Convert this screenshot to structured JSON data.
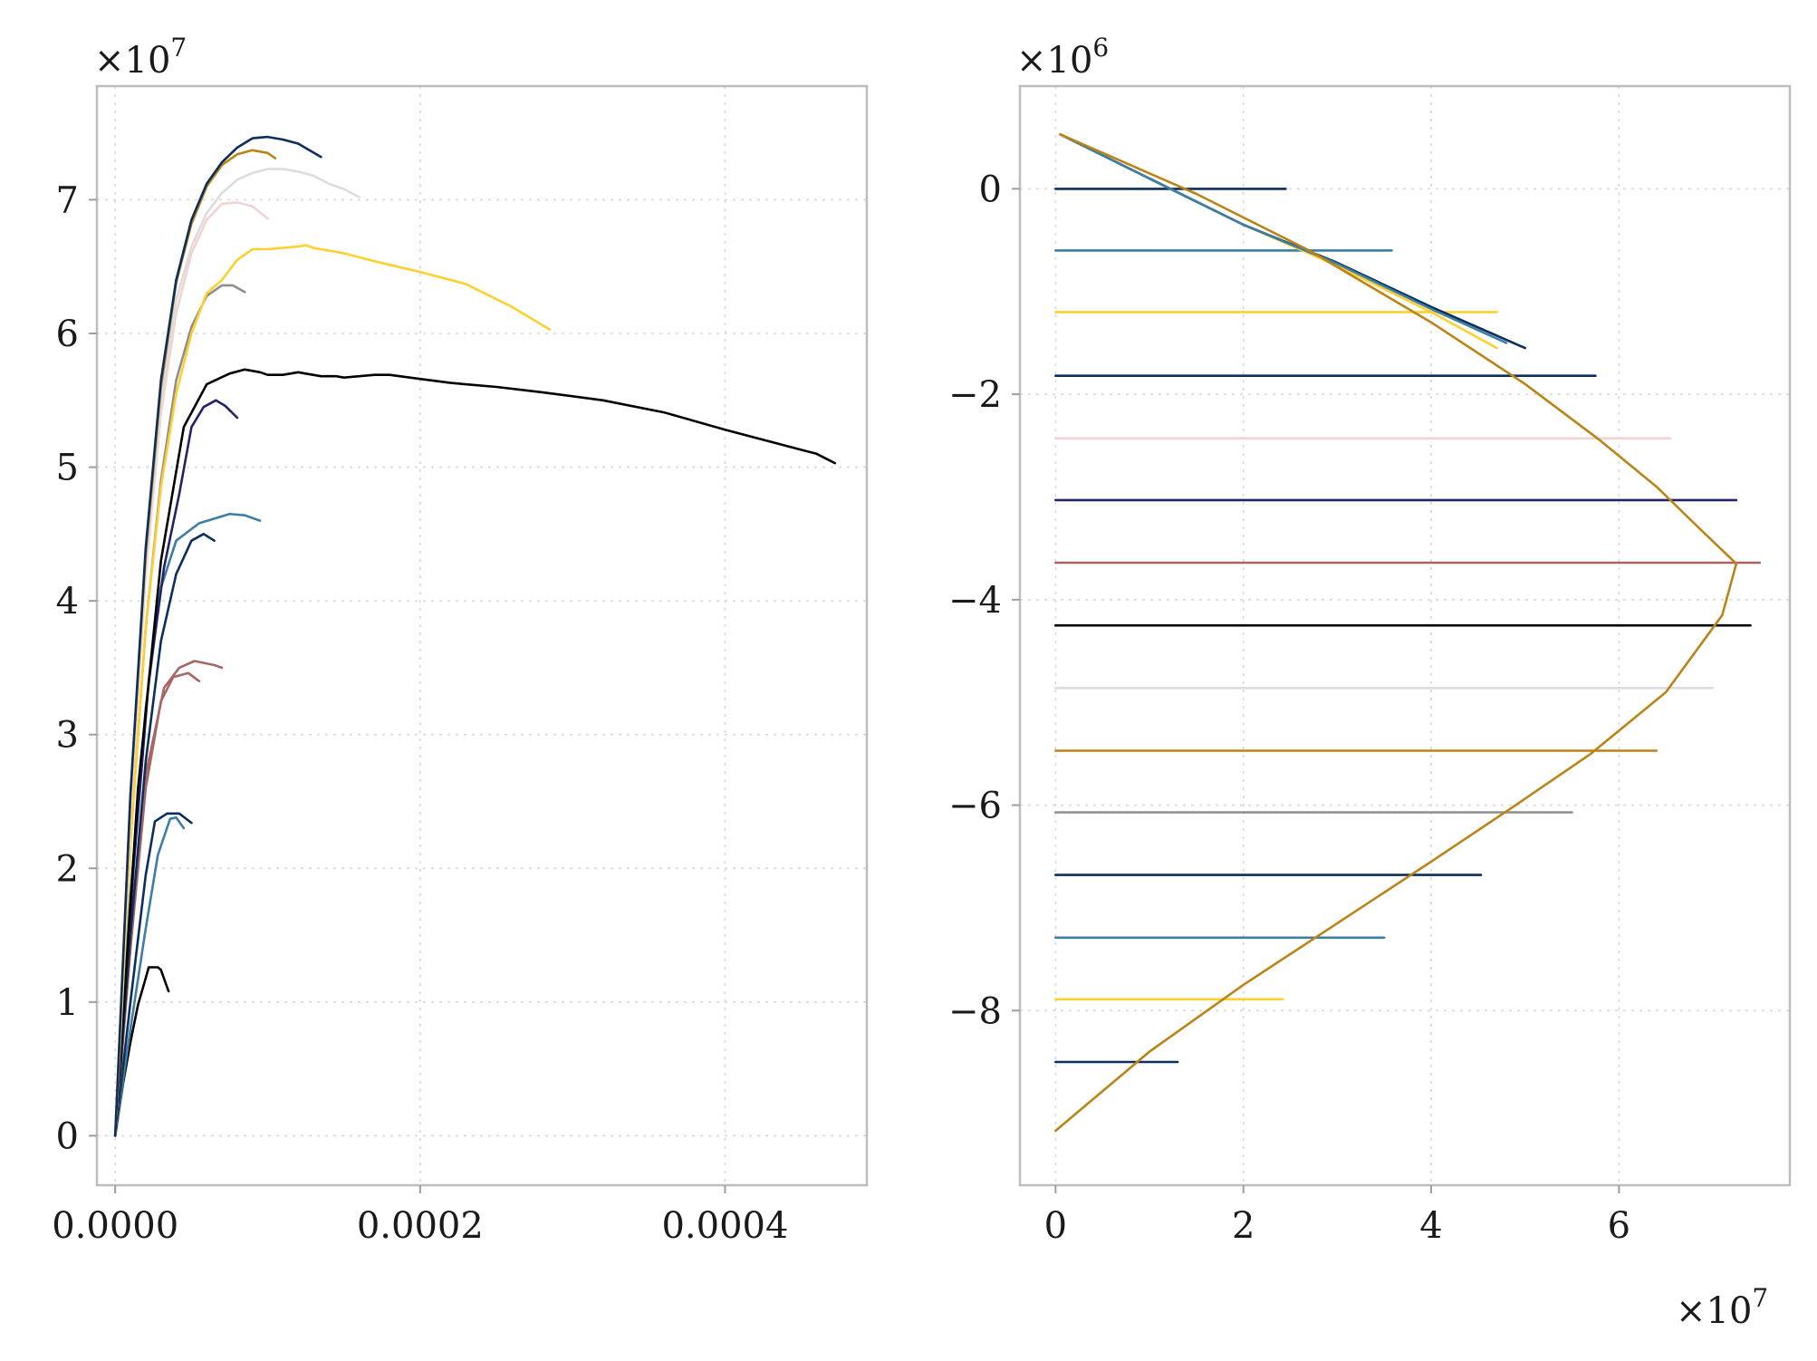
{
  "chart_data": [
    {
      "type": "line",
      "xlim": [
        -1.2e-05,
        0.000493
      ],
      "ylim": [
        -3700000,
        78500000
      ],
      "x_ticks": [
        0,
        0.0002,
        0.0004
      ],
      "x_tick_labels": [
        "0.0000",
        "0.0002",
        "0.0004"
      ],
      "y_ticks": [
        0,
        10000000,
        20000000,
        30000000,
        40000000,
        50000000,
        60000000,
        70000000
      ],
      "y_tick_labels": [
        "0",
        "1",
        "2",
        "3",
        "4",
        "5",
        "6",
        "7"
      ],
      "y_offset_label": "×10^7",
      "grid": true,
      "series": [
        {
          "color": "#000000",
          "x": [
            0,
            5e-06,
            1e-05,
            1.5e-05,
            2e-05,
            2.2e-05,
            2.8e-05,
            3e-05,
            3.5e-05
          ],
          "y": [
            0,
            3800000,
            7000000,
            9800000,
            11800000,
            12600000,
            12600000,
            12400000,
            10800000
          ]
        },
        {
          "color": "#3c7ea4",
          "x": [
            0,
            1e-05,
            2e-05,
            2.8e-05,
            3.6e-05,
            4e-05,
            4.5e-05
          ],
          "y": [
            0,
            8000000,
            15500000,
            21000000,
            23700000,
            23800000,
            23000000
          ]
        },
        {
          "color": "#0b2e5c",
          "x": [
            0,
            1e-05,
            2e-05,
            2.6e-05,
            3.4e-05,
            4.2e-05,
            5e-05
          ],
          "y": [
            0,
            10000000,
            19500000,
            23500000,
            24100000,
            24100000,
            23400000
          ]
        },
        {
          "color": "#a86565",
          "x": [
            0,
            1e-05,
            2e-05,
            3e-05,
            3.8e-05,
            4.8e-05,
            5.5e-05
          ],
          "y": [
            0,
            14000000,
            26000000,
            32500000,
            34300000,
            34600000,
            34000000
          ]
        },
        {
          "color": "#a86565",
          "x": [
            0,
            1e-05,
            2e-05,
            3.2e-05,
            4.2e-05,
            5.2e-05,
            6.5e-05,
            7e-05
          ],
          "y": [
            0,
            14000000,
            27000000,
            33500000,
            35000000,
            35500000,
            35200000,
            35000000
          ]
        },
        {
          "color": "#0b2e5c",
          "x": [
            0,
            1e-05,
            2e-05,
            3e-05,
            4e-05,
            5e-05,
            5.8e-05,
            6.5e-05
          ],
          "y": [
            0,
            15000000,
            28000000,
            37000000,
            42000000,
            44500000,
            45000000,
            44500000
          ]
        },
        {
          "color": "#3c7ea4",
          "x": [
            0,
            1e-05,
            2e-05,
            3e-05,
            4e-05,
            5.5e-05,
            7.5e-05,
            8.5e-05,
            9.5e-05
          ],
          "y": [
            0,
            18000000,
            32000000,
            41000000,
            44500000,
            45800000,
            46500000,
            46400000,
            46000000
          ]
        },
        {
          "color": "#222266",
          "x": [
            0,
            1.2e-05,
            2.2e-05,
            3.2e-05,
            4.2e-05,
            5e-05,
            5.8e-05,
            6.6e-05,
            7.2e-05,
            8e-05
          ],
          "y": [
            0,
            20000000,
            34000000,
            42500000,
            48000000,
            53000000,
            54500000,
            55000000,
            54600000,
            53700000
          ]
        },
        {
          "color": "#000000",
          "x": [
            0,
            1.5e-05,
            3e-05,
            4.5e-05,
            6e-05,
            7.5e-05,
            8.5e-05,
            9e-05,
            9.5e-05,
            0.0001,
            0.00011,
            0.00012,
            0.000125,
            0.000135,
            0.000145,
            0.00015,
            0.00016,
            0.00017,
            0.00018,
            0.0002,
            0.00022,
            0.00025,
            0.00028,
            0.00032,
            0.00036,
            0.0004,
            0.00044,
            0.00046,
            0.000472
          ],
          "y": [
            0,
            26000000,
            43000000,
            53000000,
            56200000,
            57000000,
            57300000,
            57200000,
            57100000,
            56900000,
            56900000,
            57100000,
            57000000,
            56800000,
            56800000,
            56700000,
            56800000,
            56900000,
            56900000,
            56600000,
            56300000,
            56000000,
            55600000,
            55000000,
            54100000,
            52800000,
            51600000,
            51000000,
            50300000
          ]
        },
        {
          "color": "#8e8e8e",
          "x": [
            0,
            1e-05,
            2e-05,
            3e-05,
            4e-05,
            5e-05,
            6e-05,
            7e-05,
            7.7e-05,
            8.5e-05
          ],
          "y": [
            0,
            22000000,
            38000000,
            49000000,
            56500000,
            60500000,
            62800000,
            63600000,
            63600000,
            63100000
          ]
        },
        {
          "color": "#fed02f",
          "x": [
            0,
            1e-05,
            2e-05,
            3e-05,
            4e-05,
            5e-05,
            6e-05,
            7e-05,
            8e-05,
            9e-05,
            0.0001,
            0.00011,
            0.00012,
            0.000125,
            0.00013,
            0.00015,
            0.00017,
            0.0002,
            0.00023,
            0.00026,
            0.000285
          ],
          "y": [
            0,
            22000000,
            38000000,
            48500000,
            55500000,
            60000000,
            63000000,
            64000000,
            65500000,
            66300000,
            66300000,
            66400000,
            66500000,
            66600000,
            66400000,
            66000000,
            65400000,
            64600000,
            63700000,
            62000000,
            60300000
          ]
        },
        {
          "color": "#f1d3d3",
          "x": [
            0,
            1e-05,
            2e-05,
            3e-05,
            4e-05,
            5e-05,
            6e-05,
            7e-05,
            8e-05,
            9e-05,
            0.0001
          ],
          "y": [
            0,
            24000000,
            42000000,
            54000000,
            61500000,
            66000000,
            68500000,
            69700000,
            69800000,
            69500000,
            68600000
          ]
        },
        {
          "color": "#dcdcdc",
          "x": [
            0,
            1e-05,
            2e-05,
            3e-05,
            4e-05,
            5e-05,
            6e-05,
            7e-05,
            8e-05,
            9e-05,
            0.0001,
            0.00011,
            0.00012,
            0.00013,
            0.00014,
            0.00015,
            0.00016
          ],
          "y": [
            0,
            25000000,
            43000000,
            55000000,
            62500000,
            66500000,
            69000000,
            70500000,
            71500000,
            72000000,
            72300000,
            72300000,
            72100000,
            71800000,
            71200000,
            70800000,
            70200000
          ]
        },
        {
          "color": "#bb8416",
          "x": [
            0,
            1e-05,
            2e-05,
            3e-05,
            4e-05,
            5e-05,
            6e-05,
            7e-05,
            8e-05,
            9e-05,
            0.0001,
            0.000105
          ],
          "y": [
            0,
            25500000,
            43500000,
            56000000,
            63800000,
            68200000,
            71000000,
            72600000,
            73400000,
            73700000,
            73500000,
            73100000
          ]
        },
        {
          "color": "#0b2e5c",
          "x": [
            0,
            1e-05,
            2e-05,
            3e-05,
            4e-05,
            5e-05,
            6e-05,
            7e-05,
            8e-05,
            9e-05,
            0.0001,
            0.00011,
            0.00012,
            0.000135
          ],
          "y": [
            0,
            25500000,
            44000000,
            56500000,
            64000000,
            68500000,
            71200000,
            72800000,
            73900000,
            74600000,
            74700000,
            74500000,
            74200000,
            73200000
          ]
        }
      ]
    },
    {
      "type": "line",
      "xlim": [
        -3800000,
        78200000
      ],
      "ylim": [
        -9700000,
        1000000
      ],
      "x_ticks": [
        0,
        20000000,
        40000000,
        60000000
      ],
      "x_tick_labels": [
        "0",
        "2",
        "4",
        "6"
      ],
      "y_ticks": [
        0,
        -2000000,
        -4000000,
        -6000000,
        -8000000
      ],
      "y_tick_labels": [
        "0",
        "−2",
        "−4",
        "−6",
        "−8"
      ],
      "y_offset_label": "×10^6",
      "x_offset_label": "×10^7",
      "grid": true,
      "series": [
        {
          "color": "#0b2e5c",
          "x": [
            0,
            24500000
          ],
          "y": [
            0,
            0
          ]
        },
        {
          "color": "#3c7ea4",
          "x": [
            0,
            35800000
          ],
          "y": [
            -600000,
            -600000
          ]
        },
        {
          "color": "#fed02f",
          "x": [
            0,
            47000000
          ],
          "y": [
            -1200000,
            -1200000
          ]
        },
        {
          "color": "#0b2e5c",
          "x": [
            0,
            57500000
          ],
          "y": [
            -1820000,
            -1820000
          ]
        },
        {
          "color": "#f1d3d3",
          "x": [
            0,
            65500000
          ],
          "y": [
            -2430000,
            -2430000
          ]
        },
        {
          "color": "#222266",
          "x": [
            0,
            72500000
          ],
          "y": [
            -3030000,
            -3030000
          ]
        },
        {
          "color": "#a86565",
          "x": [
            0,
            75000000
          ],
          "y": [
            -3640000,
            -3640000
          ]
        },
        {
          "color": "#000000",
          "x": [
            0,
            74000000
          ],
          "y": [
            -4250000,
            -4250000
          ]
        },
        {
          "color": "#dcdcdc",
          "x": [
            0,
            70000000
          ],
          "y": [
            -4860000,
            -4860000
          ]
        },
        {
          "color": "#bb8416",
          "x": [
            0,
            64000000
          ],
          "y": [
            -5470000,
            -5470000
          ]
        },
        {
          "color": "#8e8e8e",
          "x": [
            0,
            55000000
          ],
          "y": [
            -6070000,
            -6070000
          ]
        },
        {
          "color": "#0b2e5c",
          "x": [
            0,
            45300000
          ],
          "y": [
            -6680000,
            -6680000
          ]
        },
        {
          "color": "#3c7ea4",
          "x": [
            0,
            35000000
          ],
          "y": [
            -7290000,
            -7290000
          ]
        },
        {
          "color": "#fed02f",
          "x": [
            0,
            24200000
          ],
          "y": [
            -7890000,
            -7890000
          ]
        },
        {
          "color": "#0b2e5c",
          "x": [
            0,
            13000000
          ],
          "y": [
            -8500000,
            -8500000
          ]
        },
        {
          "color": "#fed02f",
          "x": [
            500000,
            10000000,
            20000000,
            30000000,
            40000000,
            47000000
          ],
          "y": [
            530000,
            100000,
            -350000,
            -750000,
            -1200000,
            -1550000
          ]
        },
        {
          "color": "#0b2e5c",
          "x": [
            500000,
            10000000,
            20000000,
            30000000,
            40000000,
            50000000
          ],
          "y": [
            530000,
            100000,
            -350000,
            -720000,
            -1150000,
            -1550000
          ]
        },
        {
          "color": "#3c7ea4",
          "x": [
            500000,
            10000000,
            20000000,
            30000000,
            40000000,
            48000000
          ],
          "y": [
            530000,
            100000,
            -350000,
            -730000,
            -1170000,
            -1500000
          ]
        },
        {
          "color": "#bb8416",
          "x": [
            500000,
            15000000,
            27000000,
            40000000,
            50000000,
            58000000,
            64000000,
            68500000,
            72500000,
            71000000,
            65000000,
            57000000,
            49000000,
            40000000,
            30000000,
            20000000,
            10000000,
            0
          ],
          "y": [
            530000,
            -50000,
            -600000,
            -1300000,
            -1900000,
            -2450000,
            -2900000,
            -3300000,
            -3650000,
            -4150000,
            -4900000,
            -5500000,
            -6000000,
            -6550000,
            -7150000,
            -7750000,
            -8400000,
            -9170000
          ]
        }
      ]
    }
  ]
}
